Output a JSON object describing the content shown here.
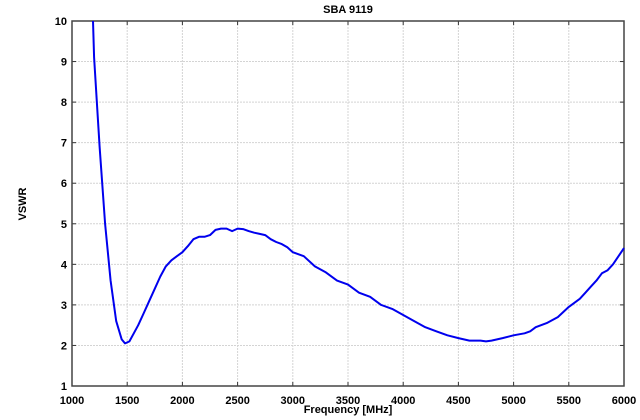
{
  "chart_data": {
    "type": "line",
    "title": "SBA 9119",
    "xlabel": "Frequency [MHz]",
    "ylabel": "VSWR",
    "xlim": [
      1000,
      6000
    ],
    "ylim": [
      1,
      10
    ],
    "grid": true,
    "x_ticks": [
      1000,
      1500,
      2000,
      2500,
      3000,
      3500,
      4000,
      4500,
      5000,
      5500,
      6000
    ],
    "y_ticks": [
      1,
      2,
      3,
      4,
      5,
      6,
      7,
      8,
      9,
      10
    ],
    "line_color": "#0000ee",
    "series": [
      {
        "name": "VSWR",
        "x": [
          1190,
          1200,
          1250,
          1300,
          1350,
          1400,
          1450,
          1480,
          1520,
          1560,
          1600,
          1650,
          1700,
          1750,
          1800,
          1850,
          1900,
          1950,
          2000,
          2050,
          2100,
          2150,
          2200,
          2250,
          2300,
          2350,
          2400,
          2450,
          2500,
          2550,
          2600,
          2650,
          2700,
          2750,
          2800,
          2850,
          2900,
          2950,
          3000,
          3100,
          3200,
          3300,
          3400,
          3500,
          3600,
          3700,
          3800,
          3900,
          4000,
          4100,
          4200,
          4300,
          4400,
          4500,
          4600,
          4700,
          4750,
          4800,
          4900,
          5000,
          5100,
          5150,
          5200,
          5300,
          5400,
          5500,
          5600,
          5650,
          5700,
          5750,
          5800,
          5850,
          5900,
          5950,
          6000
        ],
        "values": [
          10,
          9.1,
          6.9,
          5.0,
          3.6,
          2.6,
          2.15,
          2.05,
          2.1,
          2.3,
          2.5,
          2.8,
          3.1,
          3.4,
          3.7,
          3.95,
          4.1,
          4.2,
          4.3,
          4.45,
          4.62,
          4.68,
          4.68,
          4.72,
          4.85,
          4.88,
          4.88,
          4.82,
          4.88,
          4.87,
          4.82,
          4.78,
          4.75,
          4.72,
          4.62,
          4.55,
          4.5,
          4.42,
          4.3,
          4.2,
          3.95,
          3.8,
          3.6,
          3.5,
          3.3,
          3.2,
          3.0,
          2.9,
          2.75,
          2.6,
          2.45,
          2.35,
          2.25,
          2.18,
          2.12,
          2.12,
          2.1,
          2.12,
          2.18,
          2.25,
          2.3,
          2.35,
          2.45,
          2.55,
          2.7,
          2.95,
          3.15,
          3.3,
          3.45,
          3.6,
          3.78,
          3.85,
          4.0,
          4.2,
          4.4
        ]
      }
    ]
  }
}
